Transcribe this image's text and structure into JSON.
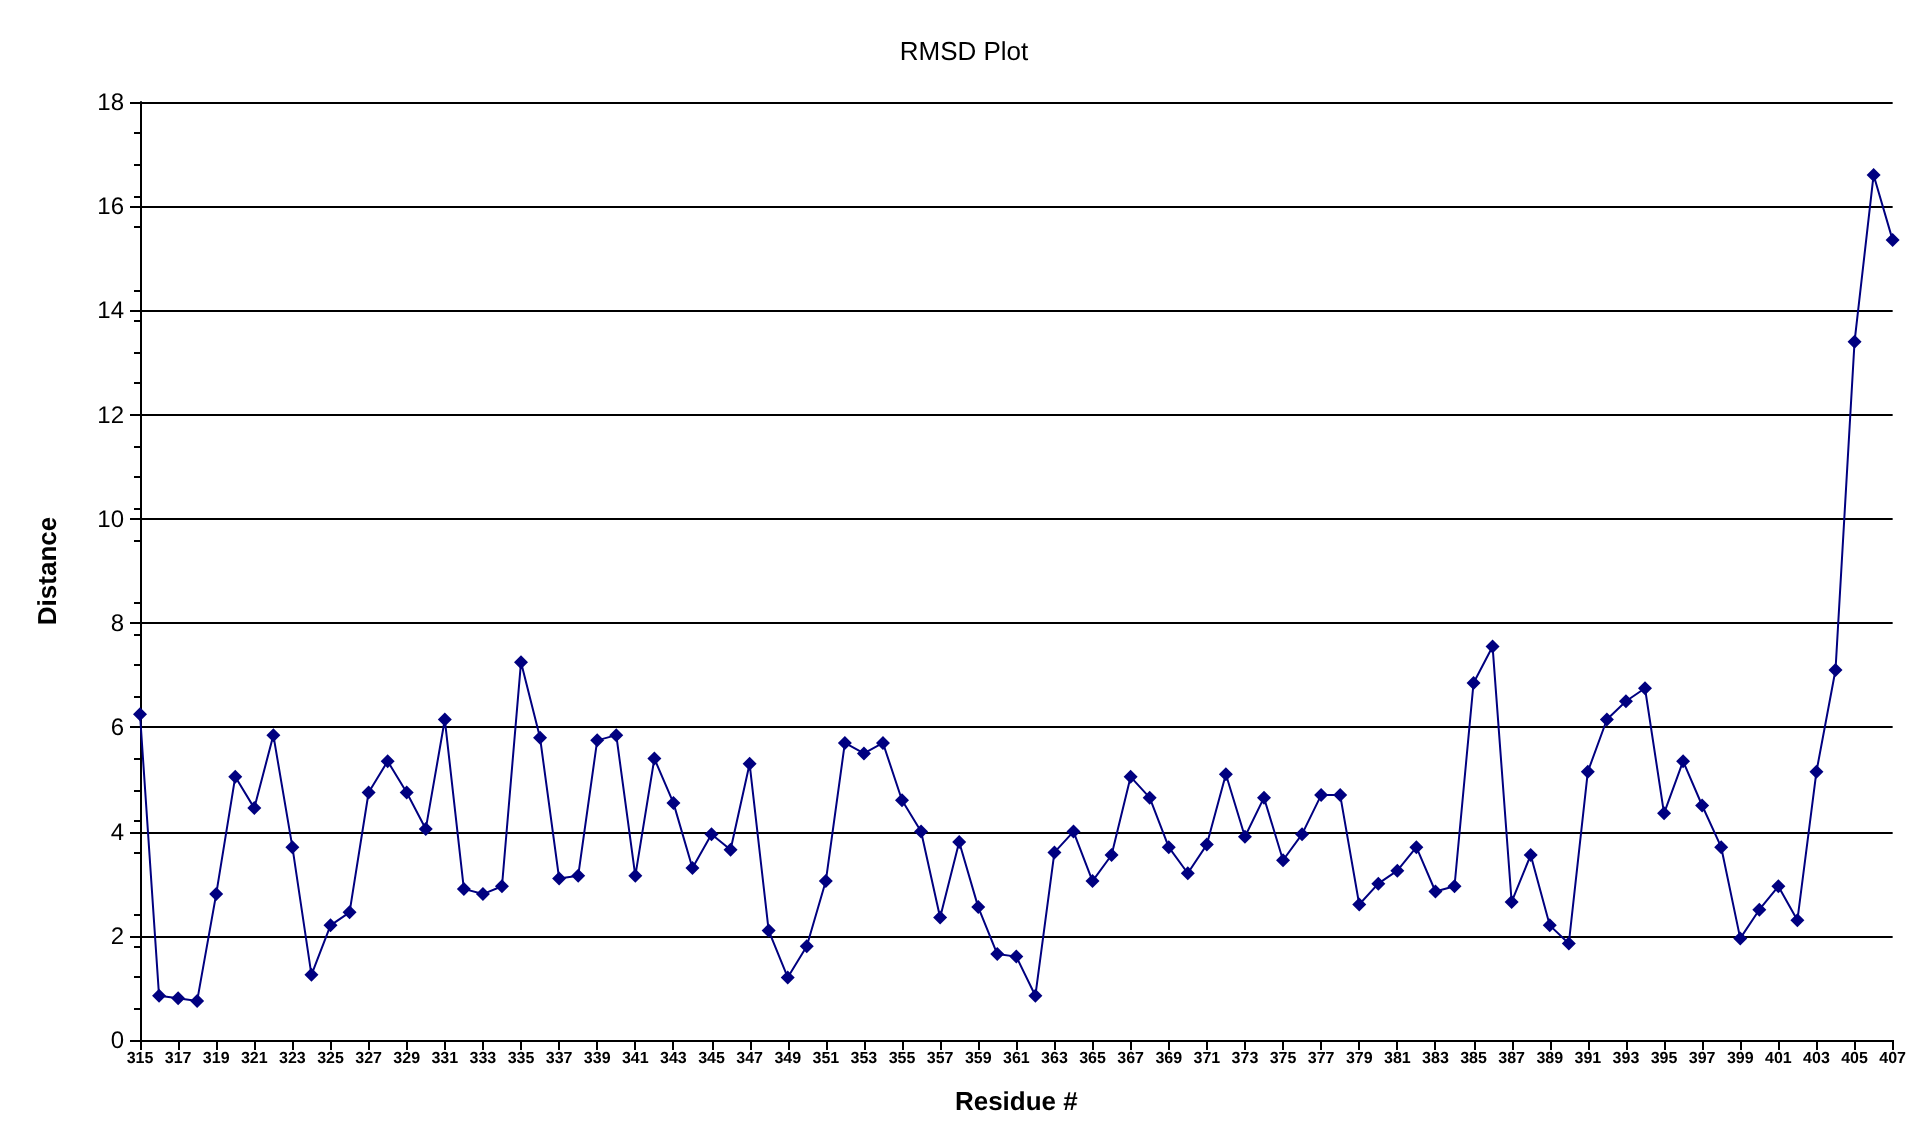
{
  "chart_data": {
    "type": "line",
    "title": "RMSD Plot",
    "xlabel": "Residue #",
    "ylabel": "Distance",
    "categories": [
      "315",
      null,
      "317",
      null,
      "319",
      null,
      "321",
      null,
      "323",
      null,
      "325",
      null,
      "327",
      null,
      "329",
      null,
      "331",
      null,
      "333",
      null,
      "335",
      null,
      "337",
      null,
      "339",
      null,
      "341",
      null,
      "343",
      null,
      "345",
      null,
      "347",
      null,
      "349",
      null,
      "351",
      null,
      "353",
      null,
      "355",
      null,
      "357",
      null,
      "359",
      null,
      "361",
      null,
      "363",
      null,
      "365",
      null,
      "367",
      null,
      "369",
      null,
      "371",
      null,
      "373",
      null,
      "375",
      null,
      "377",
      null,
      "379",
      null,
      "381",
      null,
      "383",
      null,
      "385",
      null,
      "387",
      null,
      "389",
      null,
      "391",
      null,
      "393",
      null,
      "395",
      null,
      "397",
      null,
      "399",
      null,
      "401",
      null,
      "403",
      null,
      "405",
      null,
      "407"
    ],
    "series": [
      {
        "color": "#000080",
        "values": [
          6.25,
          0.85,
          0.8,
          0.75,
          2.8,
          5.05,
          4.45,
          5.85,
          3.7,
          1.25,
          2.2,
          2.45,
          4.75,
          5.35,
          4.75,
          4.05,
          6.15,
          2.9,
          2.8,
          2.95,
          7.25,
          5.8,
          3.1,
          3.15,
          5.75,
          5.85,
          3.15,
          5.4,
          4.55,
          3.3,
          3.95,
          3.65,
          5.3,
          2.1,
          1.2,
          1.8,
          3.05,
          5.7,
          5.5,
          5.7,
          4.6,
          4.0,
          2.35,
          3.8,
          2.55,
          1.65,
          1.6,
          0.85,
          3.6,
          4.0,
          3.05,
          3.55,
          5.05,
          4.65,
          3.7,
          3.2,
          3.75,
          5.1,
          3.9,
          4.65,
          3.45,
          3.95,
          4.7,
          4.7,
          2.6,
          3.0,
          3.25,
          3.7,
          2.85,
          2.95,
          6.85,
          7.55,
          2.65,
          3.55,
          2.2,
          1.85,
          5.15,
          6.15,
          6.5,
          6.75,
          4.35,
          5.35,
          4.5,
          3.7,
          1.95,
          2.5,
          2.95,
          2.3,
          5.15,
          7.1,
          13.4,
          16.6,
          15.35
        ]
      }
    ],
    "ylim": [
      0,
      18
    ],
    "yticks": [
      0,
      2,
      4,
      6,
      8,
      10,
      12,
      14,
      16,
      18
    ],
    "grid": "y",
    "marker": "diamond",
    "line_style": "solid"
  }
}
